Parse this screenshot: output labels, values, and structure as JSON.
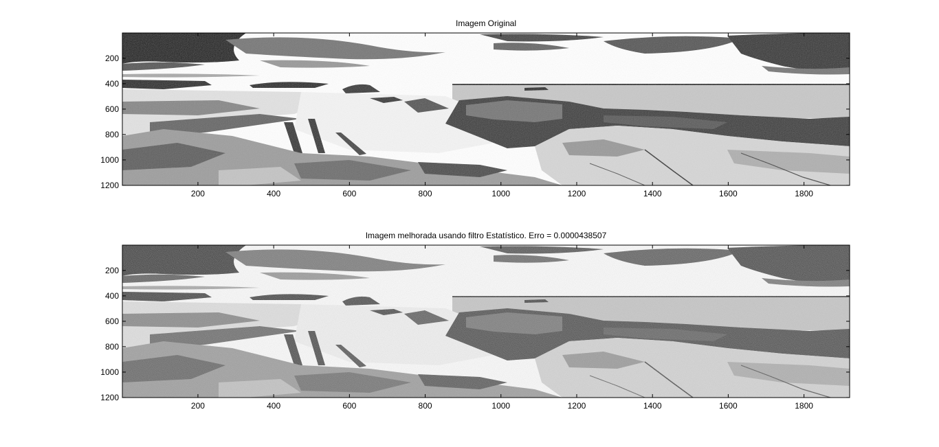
{
  "figure": {
    "background": "#ffffff",
    "axes_color": "#000000"
  },
  "chart_data": [
    {
      "type": "heatmap",
      "title": "Imagem Original",
      "xlim": [
        0.5,
        1920.5
      ],
      "ylim": [
        0.5,
        1200.5
      ],
      "y_reversed": true,
      "colormap": "gray",
      "xticks": [
        200,
        400,
        600,
        800,
        1000,
        1200,
        1400,
        1600,
        1800
      ],
      "yticks": [
        200,
        400,
        600,
        800,
        1000,
        1200
      ],
      "grain": "low"
    },
    {
      "type": "heatmap",
      "title": "Imagem melhorada usando filtro Estatístico. Erro = 0.0000438507",
      "xlim": [
        0.5,
        1920.5
      ],
      "ylim": [
        0.5,
        1200.5
      ],
      "y_reversed": true,
      "colormap": "gray",
      "xticks": [
        200,
        400,
        600,
        800,
        1000,
        1200,
        1400,
        1600,
        1800
      ],
      "yticks": [
        200,
        400,
        600,
        800,
        1000,
        1200
      ],
      "grain": "high"
    }
  ]
}
